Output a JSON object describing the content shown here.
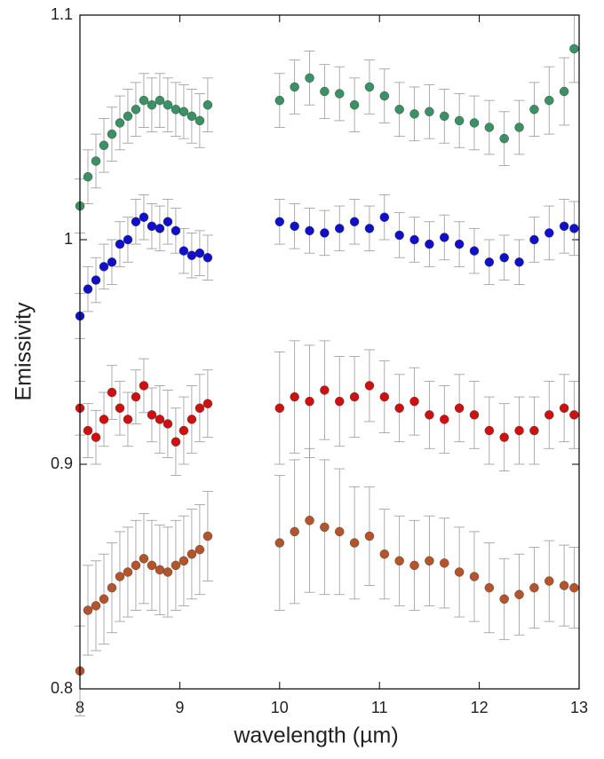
{
  "chart_data": {
    "type": "scatter",
    "xlabel": "wavelength (µm)",
    "ylabel": "Emissivity",
    "xlim": [
      8,
      13
    ],
    "ylim": [
      0.8,
      1.1
    ],
    "xticks": [
      8,
      9,
      10,
      11,
      12,
      13
    ],
    "yticks": [
      0.8,
      0.9,
      1,
      1.1
    ],
    "series": [
      {
        "color": "#3a9163",
        "x": [
          8.0,
          8.08,
          8.16,
          8.24,
          8.32,
          8.4,
          8.48,
          8.56,
          8.64,
          8.72,
          8.8,
          8.88,
          8.96,
          9.04,
          9.12,
          9.2,
          9.28,
          10.0,
          10.15,
          10.3,
          10.45,
          10.6,
          10.75,
          10.9,
          11.05,
          11.2,
          11.35,
          11.5,
          11.65,
          11.8,
          11.95,
          12.1,
          12.25,
          12.4,
          12.55,
          12.7,
          12.85,
          12.95
        ],
        "values": [
          1.015,
          1.028,
          1.035,
          1.042,
          1.047,
          1.052,
          1.055,
          1.058,
          1.062,
          1.06,
          1.062,
          1.06,
          1.058,
          1.057,
          1.055,
          1.053,
          1.06,
          1.062,
          1.068,
          1.072,
          1.066,
          1.065,
          1.06,
          1.068,
          1.064,
          1.058,
          1.056,
          1.057,
          1.055,
          1.053,
          1.052,
          1.05,
          1.045,
          1.05,
          1.058,
          1.062,
          1.066,
          1.085
        ],
        "errors": [
          0.012,
          0.012,
          0.012,
          0.012,
          0.012,
          0.012,
          0.012,
          0.012,
          0.012,
          0.012,
          0.012,
          0.012,
          0.012,
          0.012,
          0.012,
          0.012,
          0.012,
          0.012,
          0.012,
          0.012,
          0.012,
          0.012,
          0.012,
          0.012,
          0.012,
          0.012,
          0.012,
          0.012,
          0.012,
          0.012,
          0.012,
          0.012,
          0.012,
          0.012,
          0.012,
          0.015,
          0.015,
          0.015
        ]
      },
      {
        "color": "#1010cc",
        "x": [
          8.0,
          8.08,
          8.16,
          8.24,
          8.32,
          8.4,
          8.48,
          8.56,
          8.64,
          8.72,
          8.8,
          8.88,
          8.96,
          9.04,
          9.12,
          9.2,
          9.28,
          10.0,
          10.15,
          10.3,
          10.45,
          10.6,
          10.75,
          10.9,
          11.05,
          11.2,
          11.35,
          11.5,
          11.65,
          11.8,
          11.95,
          12.1,
          12.25,
          12.4,
          12.55,
          12.7,
          12.85,
          12.95
        ],
        "values": [
          0.966,
          0.978,
          0.982,
          0.988,
          0.99,
          0.998,
          1.0,
          1.008,
          1.01,
          1.006,
          1.005,
          1.008,
          1.004,
          0.995,
          0.993,
          0.994,
          0.992,
          1.008,
          1.006,
          1.004,
          1.003,
          1.005,
          1.008,
          1.005,
          1.01,
          1.002,
          1.0,
          0.998,
          1.001,
          0.998,
          0.995,
          0.99,
          0.992,
          0.99,
          1.0,
          1.003,
          1.006,
          1.005
        ],
        "errors": [
          0.01,
          0.01,
          0.01,
          0.01,
          0.01,
          0.01,
          0.01,
          0.01,
          0.01,
          0.01,
          0.01,
          0.01,
          0.01,
          0.01,
          0.01,
          0.01,
          0.01,
          0.01,
          0.01,
          0.01,
          0.01,
          0.01,
          0.01,
          0.01,
          0.01,
          0.01,
          0.01,
          0.01,
          0.01,
          0.01,
          0.01,
          0.01,
          0.01,
          0.01,
          0.01,
          0.012,
          0.012,
          0.012
        ]
      },
      {
        "color": "#d01010",
        "x": [
          8.0,
          8.08,
          8.16,
          8.24,
          8.32,
          8.4,
          8.48,
          8.56,
          8.64,
          8.72,
          8.8,
          8.88,
          8.96,
          9.04,
          9.12,
          9.2,
          9.28,
          10.0,
          10.15,
          10.3,
          10.45,
          10.6,
          10.75,
          10.9,
          11.05,
          11.2,
          11.35,
          11.5,
          11.65,
          11.8,
          11.95,
          12.1,
          12.25,
          12.4,
          12.55,
          12.7,
          12.85,
          12.95
        ],
        "values": [
          0.925,
          0.915,
          0.912,
          0.92,
          0.932,
          0.925,
          0.92,
          0.93,
          0.935,
          0.922,
          0.92,
          0.918,
          0.91,
          0.915,
          0.92,
          0.925,
          0.927,
          0.925,
          0.93,
          0.928,
          0.933,
          0.928,
          0.93,
          0.935,
          0.93,
          0.925,
          0.928,
          0.922,
          0.92,
          0.925,
          0.922,
          0.915,
          0.912,
          0.915,
          0.915,
          0.922,
          0.925,
          0.922
        ],
        "errors": [
          0.012,
          0.012,
          0.012,
          0.012,
          0.012,
          0.012,
          0.012,
          0.012,
          0.012,
          0.012,
          0.015,
          0.015,
          0.015,
          0.015,
          0.015,
          0.015,
          0.015,
          0.025,
          0.025,
          0.025,
          0.022,
          0.02,
          0.018,
          0.016,
          0.016,
          0.015,
          0.015,
          0.015,
          0.015,
          0.015,
          0.015,
          0.015,
          0.015,
          0.015,
          0.015,
          0.015,
          0.015,
          0.015
        ]
      },
      {
        "color": "#b5532a",
        "x": [
          8.0,
          8.08,
          8.16,
          8.24,
          8.32,
          8.4,
          8.48,
          8.56,
          8.64,
          8.72,
          8.8,
          8.88,
          8.96,
          9.04,
          9.12,
          9.2,
          9.28,
          10.0,
          10.15,
          10.3,
          10.45,
          10.6,
          10.75,
          10.9,
          11.05,
          11.2,
          11.35,
          11.5,
          11.65,
          11.8,
          11.95,
          12.1,
          12.25,
          12.4,
          12.55,
          12.7,
          12.85,
          12.95
        ],
        "values": [
          0.808,
          0.835,
          0.837,
          0.84,
          0.845,
          0.85,
          0.852,
          0.855,
          0.858,
          0.855,
          0.853,
          0.852,
          0.855,
          0.857,
          0.86,
          0.862,
          0.868,
          0.865,
          0.87,
          0.875,
          0.872,
          0.87,
          0.865,
          0.868,
          0.86,
          0.857,
          0.855,
          0.857,
          0.856,
          0.852,
          0.85,
          0.845,
          0.84,
          0.842,
          0.845,
          0.848,
          0.846,
          0.845
        ],
        "errors": [
          0.02,
          0.02,
          0.02,
          0.02,
          0.02,
          0.02,
          0.02,
          0.02,
          0.02,
          0.02,
          0.02,
          0.02,
          0.02,
          0.02,
          0.02,
          0.02,
          0.02,
          0.03,
          0.032,
          0.032,
          0.03,
          0.028,
          0.025,
          0.022,
          0.02,
          0.02,
          0.02,
          0.02,
          0.02,
          0.02,
          0.02,
          0.02,
          0.018,
          0.018,
          0.018,
          0.018,
          0.018,
          0.018
        ]
      }
    ]
  }
}
